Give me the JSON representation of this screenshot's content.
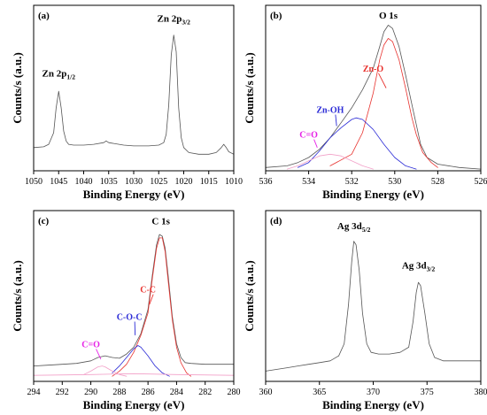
{
  "colors": {
    "raw": "#555555",
    "red": "#e8322e",
    "blue": "#2b2bd6",
    "magenta": "#e620e6",
    "pinkfit": "#f2a0c8"
  },
  "chart_data": [
    {
      "panel_label": "(a)",
      "type": "line",
      "xlabel": "Binding Energy (eV)",
      "ylabel": "Counts/s (a.u.)",
      "xlim": [
        1050,
        1010
      ],
      "ylim": [
        0,
        100
      ],
      "xticks": [
        "1050",
        "1045",
        "1040",
        "1035",
        "1030",
        "1025",
        "1020",
        "1015",
        "1010"
      ],
      "peak_labels": [
        {
          "main": "Zn 2p",
          "sub": "1/2",
          "x": 1045.0,
          "y": 57
        },
        {
          "main": "Zn 2p",
          "sub": "3/2",
          "x": 1022.0,
          "y": 90
        }
      ],
      "annotations": [],
      "series": [
        {
          "color": "#555555",
          "width": 0.8,
          "points": [
            [
              1050,
              14
            ],
            [
              1048,
              14.5
            ],
            [
              1047,
              16
            ],
            [
              1046,
              23
            ],
            [
              1045.5,
              38
            ],
            [
              1045,
              48
            ],
            [
              1044.5,
              38
            ],
            [
              1044,
              24
            ],
            [
              1043.5,
              18
            ],
            [
              1043,
              16
            ],
            [
              1042,
              15.5
            ],
            [
              1040,
              15.5
            ],
            [
              1038,
              16
            ],
            [
              1036,
              17
            ],
            [
              1035.5,
              18
            ],
            [
              1035,
              17
            ],
            [
              1034,
              16.5
            ],
            [
              1032,
              15.5
            ],
            [
              1030,
              15
            ],
            [
              1027,
              15
            ],
            [
              1025,
              15.5
            ],
            [
              1024,
              17
            ],
            [
              1023.5,
              22
            ],
            [
              1023,
              40
            ],
            [
              1022.5,
              70
            ],
            [
              1022,
              82
            ],
            [
              1021.5,
              72
            ],
            [
              1021,
              38
            ],
            [
              1020.5,
              20
            ],
            [
              1020,
              14
            ],
            [
              1019,
              11
            ],
            [
              1017,
              10
            ],
            [
              1015,
              10
            ],
            [
              1013.5,
              11
            ],
            [
              1012.5,
              14
            ],
            [
              1012,
              16
            ],
            [
              1011.5,
              14
            ],
            [
              1011,
              11.5
            ],
            [
              1010,
              10
            ]
          ]
        }
      ]
    },
    {
      "panel_label": "(b)",
      "type": "line",
      "xlabel": "Binding Energy (eV)",
      "ylabel": "Counts/s (a.u.)",
      "xlim": [
        536,
        526
      ],
      "ylim": [
        0,
        100
      ],
      "xticks": [
        "536",
        "534",
        "532",
        "530",
        "528",
        "526"
      ],
      "peak_labels": [
        {
          "main": "O 1s",
          "sub": "",
          "x": 530.3,
          "y": 92
        }
      ],
      "annotations": [
        {
          "text": "Zn-O",
          "color": "#e8322e",
          "x": 531.0,
          "y": 60,
          "ax": 530.4,
          "ay": 50
        },
        {
          "text": "Zn-OH",
          "color": "#2b2bd6",
          "x": 533.0,
          "y": 35,
          "ax": 532.7,
          "ay": 27
        },
        {
          "text": "C=O",
          "color": "#e620e6",
          "x": 534.0,
          "y": 20,
          "ax": 533.6,
          "ay": 14
        }
      ],
      "series": [
        {
          "color": "#555555",
          "width": 0.8,
          "points": [
            [
              536,
              2
            ],
            [
              535,
              3
            ],
            [
              534.5,
              5
            ],
            [
              534,
              8
            ],
            [
              533.5,
              13
            ],
            [
              533,
              20
            ],
            [
              532.5,
              29
            ],
            [
              532,
              38
            ],
            [
              531.5,
              49
            ],
            [
              531,
              62
            ],
            [
              530.7,
              75
            ],
            [
              530.5,
              84
            ],
            [
              530.3,
              88
            ],
            [
              530.1,
              86
            ],
            [
              529.8,
              75
            ],
            [
              529.5,
              58
            ],
            [
              529.2,
              40
            ],
            [
              529,
              28
            ],
            [
              528.8,
              16
            ],
            [
              528.5,
              8
            ],
            [
              528,
              4
            ],
            [
              527,
              2
            ],
            [
              526,
              1
            ]
          ]
        },
        {
          "color": "#e8322e",
          "width": 0.8,
          "points": [
            [
              533,
              3
            ],
            [
              532,
              10
            ],
            [
              531.5,
              23
            ],
            [
              531,
              47
            ],
            [
              530.7,
              67
            ],
            [
              530.5,
              76
            ],
            [
              530.3,
              80
            ],
            [
              530.1,
              78
            ],
            [
              529.8,
              67
            ],
            [
              529.5,
              50
            ],
            [
              529.2,
              32
            ],
            [
              529,
              22
            ],
            [
              528.7,
              11
            ],
            [
              528.3,
              5
            ],
            [
              528,
              2
            ]
          ]
        },
        {
          "color": "#2b2bd6",
          "width": 0.8,
          "points": [
            [
              534.5,
              2
            ],
            [
              534,
              5
            ],
            [
              533.5,
              12
            ],
            [
              533,
              20
            ],
            [
              532.5,
              26
            ],
            [
              532,
              31
            ],
            [
              531.8,
              32
            ],
            [
              531.5,
              31
            ],
            [
              531,
              25
            ],
            [
              530.5,
              16
            ],
            [
              530,
              8
            ],
            [
              529.5,
              3
            ],
            [
              529,
              1
            ]
          ]
        },
        {
          "color": "#f2a0c8",
          "width": 0.8,
          "points": [
            [
              535,
              1
            ],
            [
              534.5,
              3
            ],
            [
              534,
              6
            ],
            [
              533.5,
              9
            ],
            [
              533,
              10
            ],
            [
              532.5,
              9
            ],
            [
              532,
              6
            ],
            [
              531.5,
              3
            ],
            [
              531,
              1
            ]
          ]
        }
      ]
    },
    {
      "panel_label": "(c)",
      "type": "line",
      "xlabel": "Binding Energy (eV)",
      "ylabel": "Counts/s (a.u.)",
      "xlim": [
        294,
        280
      ],
      "ylim": [
        0,
        100
      ],
      "xticks": [
        "294",
        "292",
        "290",
        "288",
        "286",
        "284",
        "282",
        "280"
      ],
      "peak_labels": [
        {
          "main": "C 1s",
          "sub": "",
          "x": 285.1,
          "y": 92
        }
      ],
      "annotations": [
        {
          "text": "C-C",
          "color": "#e8322e",
          "x": 286.0,
          "y": 52,
          "ax": 285.9,
          "ay": 45
        },
        {
          "text": "C-O-C",
          "color": "#2b2bd6",
          "x": 287.3,
          "y": 36,
          "ax": 286.9,
          "ay": 27
        },
        {
          "text": "C=O",
          "color": "#e620e6",
          "x": 290.0,
          "y": 20,
          "ax": 289.3,
          "ay": 13
        }
      ],
      "series": [
        {
          "color": "#555555",
          "width": 0.8,
          "points": [
            [
              294,
              9
            ],
            [
              293,
              9.5
            ],
            [
              292,
              10
            ],
            [
              291,
              10.5
            ],
            [
              290,
              12
            ],
            [
              289.5,
              14
            ],
            [
              289,
              15
            ],
            [
              288.5,
              14
            ],
            [
              288,
              13.5
            ],
            [
              287.5,
              16
            ],
            [
              287,
              20
            ],
            [
              286.5,
              28
            ],
            [
              286,
              42
            ],
            [
              285.7,
              62
            ],
            [
              285.4,
              80
            ],
            [
              285.2,
              86
            ],
            [
              285,
              85
            ],
            [
              284.8,
              78
            ],
            [
              284.6,
              63
            ],
            [
              284.3,
              38
            ],
            [
              284,
              22
            ],
            [
              283.7,
              14
            ],
            [
              283.4,
              11
            ],
            [
              283,
              10.5
            ],
            [
              282,
              10
            ],
            [
              281,
              10
            ],
            [
              280,
              10
            ]
          ]
        },
        {
          "color": "#e8322e",
          "width": 0.8,
          "points": [
            [
              288.5,
              3
            ],
            [
              288,
              6
            ],
            [
              287.5,
              10
            ],
            [
              287,
              17
            ],
            [
              286.5,
              27
            ],
            [
              286,
              40
            ],
            [
              285.7,
              60
            ],
            [
              285.4,
              78
            ],
            [
              285.2,
              84
            ],
            [
              285,
              84
            ],
            [
              284.8,
              76
            ],
            [
              284.6,
              60
            ],
            [
              284.3,
              36
            ],
            [
              284,
              20
            ],
            [
              283.7,
              11
            ],
            [
              283.3,
              5
            ],
            [
              283,
              3
            ]
          ]
        },
        {
          "color": "#2b2bd6",
          "width": 0.8,
          "points": [
            [
              288.5,
              5
            ],
            [
              288,
              9
            ],
            [
              287.5,
              14
            ],
            [
              287,
              19
            ],
            [
              286.7,
              21
            ],
            [
              286.5,
              20
            ],
            [
              286,
              15
            ],
            [
              285.5,
              9
            ],
            [
              285,
              5
            ],
            [
              284.5,
              3
            ]
          ]
        },
        {
          "color": "#f2a0c8",
          "width": 0.8,
          "points": [
            [
              290.5,
              4
            ],
            [
              290,
              6
            ],
            [
              289.5,
              8.5
            ],
            [
              289.2,
              9
            ],
            [
              289,
              8.5
            ],
            [
              288.5,
              6
            ],
            [
              288,
              4
            ],
            [
              287.5,
              3
            ]
          ]
        },
        {
          "color": "#f2a0c8",
          "width": 0.8,
          "points": [
            [
              294,
              3.5
            ],
            [
              290,
              4
            ],
            [
              287,
              4.5
            ],
            [
              284,
              4
            ],
            [
              280,
              3.5
            ]
          ]
        }
      ]
    },
    {
      "panel_label": "(d)",
      "type": "line",
      "xlabel": "Binding Energy (eV)",
      "ylabel": "Counts/s (a.u.)",
      "xlim": [
        360,
        380
      ],
      "ylim": [
        0,
        100
      ],
      "xticks": [
        "360",
        "365",
        "370",
        "375",
        "380"
      ],
      "peak_labels": [
        {
          "main": "Ag 3d",
          "sub": "5/2",
          "x": 368.2,
          "y": 89
        },
        {
          "main": "Ag 3d",
          "sub": "3/2",
          "x": 374.2,
          "y": 66
        }
      ],
      "annotations": [],
      "series": [
        {
          "color": "#555555",
          "width": 0.8,
          "points": [
            [
              360,
              6
            ],
            [
              361,
              7
            ],
            [
              362,
              8
            ],
            [
              363,
              9
            ],
            [
              364,
              10
            ],
            [
              365,
              11
            ],
            [
              366,
              12
            ],
            [
              366.8,
              15
            ],
            [
              367.3,
              22
            ],
            [
              367.7,
              45
            ],
            [
              368,
              70
            ],
            [
              368.2,
              82
            ],
            [
              368.4,
              80
            ],
            [
              368.7,
              65
            ],
            [
              369,
              40
            ],
            [
              369.4,
              22
            ],
            [
              369.8,
              17
            ],
            [
              370.5,
              16
            ],
            [
              371.5,
              16
            ],
            [
              372.5,
              17
            ],
            [
              373.3,
              20
            ],
            [
              373.7,
              35
            ],
            [
              374,
              52
            ],
            [
              374.2,
              58
            ],
            [
              374.4,
              56
            ],
            [
              374.8,
              40
            ],
            [
              375.2,
              22
            ],
            [
              375.7,
              14
            ],
            [
              376.5,
              12
            ],
            [
              377.5,
              12
            ],
            [
              379,
              12
            ],
            [
              380,
              12
            ]
          ]
        }
      ]
    }
  ]
}
